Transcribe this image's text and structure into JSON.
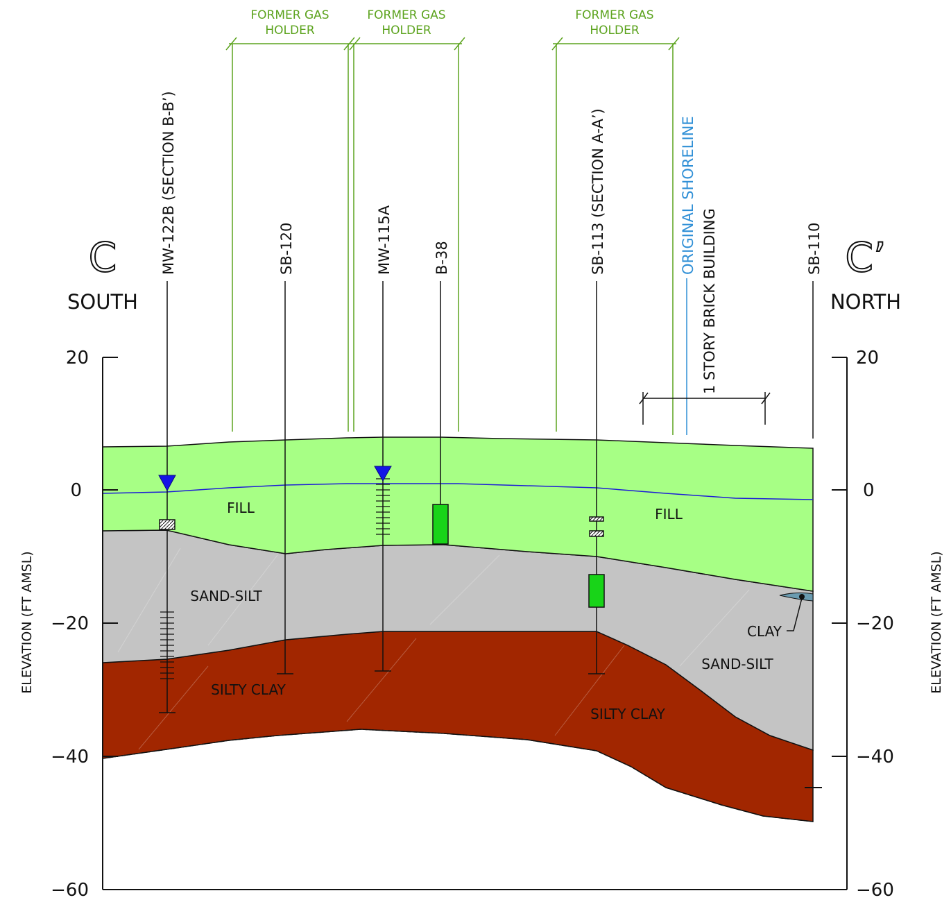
{
  "section": {
    "start_letter": "C",
    "end_letter": "C’",
    "start_direction": "SOUTH",
    "end_direction": "NORTH"
  },
  "axis": {
    "label_left": "ELEVATION (FT AMSL)",
    "label_right": "ELEVATION (FT AMSL)",
    "ticks": [
      "20",
      "0",
      "−20",
      "−40",
      "−60"
    ]
  },
  "wells": [
    {
      "id": "MW-122B (SECTION B-B’)",
      "type": "monitoring_well"
    },
    {
      "id": "SB-120",
      "type": "soil_boring"
    },
    {
      "id": "MW-115A",
      "type": "monitoring_well"
    },
    {
      "id": "B-38",
      "type": "boring"
    },
    {
      "id": "SB-113 (SECTION A-A’)",
      "type": "soil_boring"
    },
    {
      "id": "SB-110",
      "type": "soil_boring"
    }
  ],
  "features": {
    "gas_holders": [
      {
        "line1": "FORMER GAS",
        "line2": "HOLDER"
      },
      {
        "line1": "FORMER GAS",
        "line2": "HOLDER"
      },
      {
        "line1": "FORMER GAS",
        "line2": "HOLDER"
      }
    ],
    "shoreline": "ORIGINAL SHORELINE",
    "building": "1 STORY BRICK BUILDING"
  },
  "layers": {
    "fill_left": "FILL",
    "fill_right": "FILL",
    "sandsilt_left": "SAND-SILT",
    "sandsilt_right": "SAND-SILT",
    "silty_clay_left": "SILTY CLAY",
    "silty_clay_right": "SILTY CLAY",
    "clay": "CLAY"
  },
  "colors": {
    "fill": "#a7ff85",
    "sand_silt": "#c4c4c4",
    "silty_clay": "#a12600",
    "water_table": "#1d1dd6",
    "water_marker": "#1414e6",
    "gas_holder_lines": "#5ca31e",
    "shoreline": "#2f8fd6",
    "contaminant_box": "#18d418",
    "clay_lens": "#6a9bb0"
  }
}
